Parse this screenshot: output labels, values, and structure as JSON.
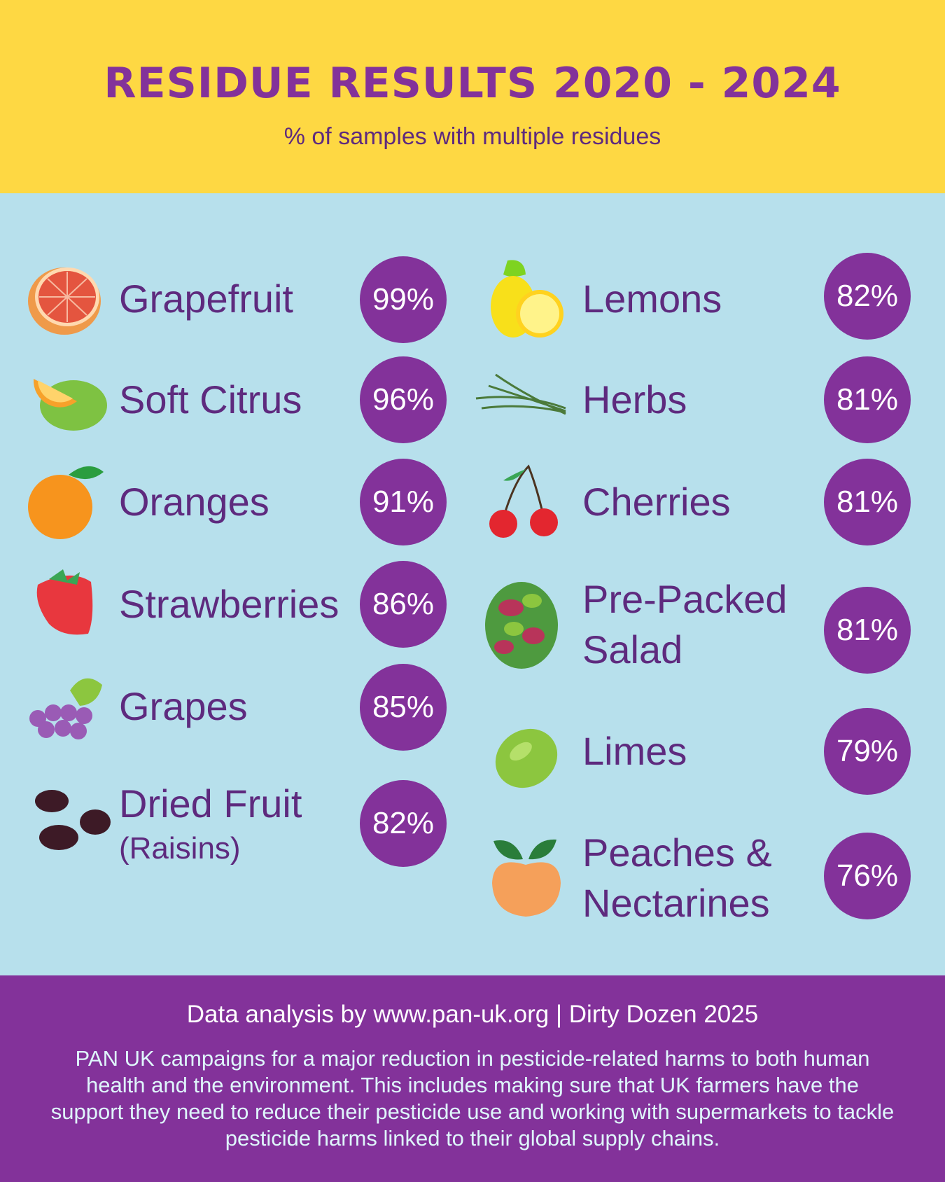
{
  "header": {
    "title": "RESIDUE RESULTS 2020 - 2024",
    "subtitle": "% of samples with multiple residues"
  },
  "colors": {
    "yellow": "#fed843",
    "blue": "#b7e0ec",
    "purple": "#83329a",
    "text_purple": "#5e2a7e"
  },
  "left_items": [
    {
      "name": "Grapefruit",
      "value": "99%",
      "icon": "grapefruit-icon"
    },
    {
      "name": "Soft Citrus",
      "value": "96%",
      "icon": "soft-citrus-icon"
    },
    {
      "name": "Oranges",
      "value": "91%",
      "icon": "orange-icon"
    },
    {
      "name": "Strawberries",
      "value": "86%",
      "icon": "strawberry-icon"
    },
    {
      "name": "Grapes",
      "value": "85%",
      "icon": "grapes-icon"
    },
    {
      "name": "Dried Fruit",
      "sub": "(Raisins)",
      "value": "82%",
      "icon": "raisins-icon"
    }
  ],
  "right_items": [
    {
      "name": "Lemons",
      "value": "82%",
      "icon": "lemon-icon"
    },
    {
      "name": "Herbs",
      "value": "81%",
      "icon": "herbs-icon"
    },
    {
      "name": "Cherries",
      "value": "81%",
      "icon": "cherries-icon"
    },
    {
      "name": "Pre-Packed",
      "name2": "Salad",
      "value": "81%",
      "icon": "salad-icon"
    },
    {
      "name": "Limes",
      "value": "79%",
      "icon": "lime-icon"
    },
    {
      "name": "Peaches &",
      "name2": "Nectarines",
      "value": "76%",
      "icon": "peach-icon"
    }
  ],
  "footer": {
    "credit": "Data analysis by www.pan-uk.org | Dirty Dozen 2025",
    "text": "PAN UK campaigns for a major reduction in pesticide-related harms to both human health and the environment. This includes making sure that UK farmers have the support they need to reduce their pesticide use and working with supermarkets to tackle pesticide harms linked to their global supply chains."
  }
}
